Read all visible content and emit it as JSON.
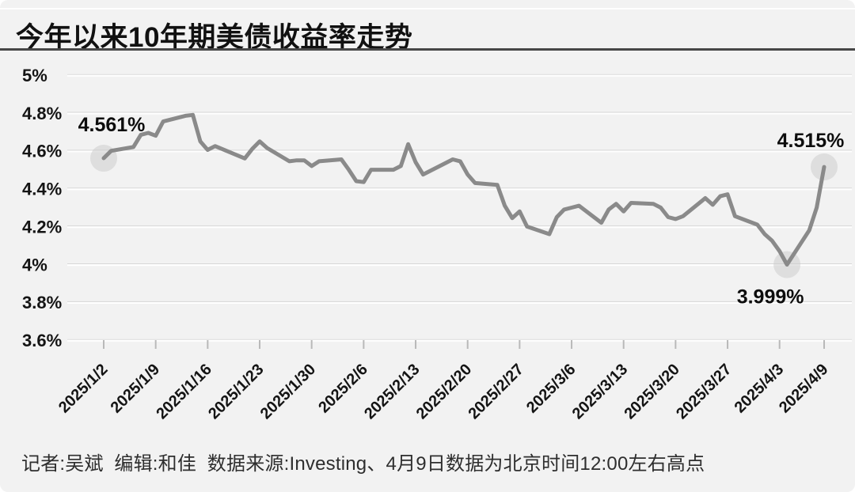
{
  "page": {
    "title": "今年以来10年期美债收益率走势",
    "footer": "记者:吴斌  编辑:和佳  数据来源:Investing、4月9日数据为北京时间12:00左右高点"
  },
  "colors": {
    "background": "#f2f2f2",
    "line": "#8a8a8a",
    "grid_dark": "#d7d7d7",
    "grid_light": "#ffffff",
    "marker": "#c9c9c9",
    "tick": "#b9b9b9",
    "axis_text": "#141414",
    "annotation_text": "#0d0d0d",
    "divider": "#474747"
  },
  "chart_data": {
    "type": "line",
    "title": "今年以来10年期美债收益率走势",
    "xlabel": "",
    "ylabel": "",
    "ylim": [
      3.6,
      5.0
    ],
    "grid": true,
    "legend": false,
    "y_ticks": [
      {
        "label": "5%",
        "value": 5.0
      },
      {
        "label": "4.8%",
        "value": 4.8
      },
      {
        "label": "4.6%",
        "value": 4.6
      },
      {
        "label": "4.4%",
        "value": 4.4
      },
      {
        "label": "4.2%",
        "value": 4.2
      },
      {
        "label": "4%",
        "value": 4.0
      },
      {
        "label": "3.8%",
        "value": 3.8
      },
      {
        "label": "3.6%",
        "value": 3.6
      }
    ],
    "x_ticks": [
      "2025/1/2",
      "2025/1/9",
      "2025/1/16",
      "2025/1/23",
      "2025/1/30",
      "2025/2/6",
      "2025/2/13",
      "2025/2/20",
      "2025/2/27",
      "2025/3/6",
      "2025/3/13",
      "2025/3/20",
      "2025/3/27",
      "2025/4/3",
      "2025/4/9"
    ],
    "series": [
      {
        "name": "10年期美债收益率",
        "points": [
          [
            "2025/1/2",
            4.561
          ],
          [
            "2025/1/3",
            4.6
          ],
          [
            "2025/1/6",
            4.62
          ],
          [
            "2025/1/7",
            4.685
          ],
          [
            "2025/1/8",
            4.695
          ],
          [
            "2025/1/9",
            4.68
          ],
          [
            "2025/1/10",
            4.755
          ],
          [
            "2025/1/13",
            4.785
          ],
          [
            "2025/1/14",
            4.79
          ],
          [
            "2025/1/15",
            4.65
          ],
          [
            "2025/1/16",
            4.605
          ],
          [
            "2025/1/17",
            4.625
          ],
          [
            "2025/1/21",
            4.56
          ],
          [
            "2025/1/22",
            4.61
          ],
          [
            "2025/1/23",
            4.65
          ],
          [
            "2025/1/24",
            4.615
          ],
          [
            "2025/1/27",
            4.545
          ],
          [
            "2025/1/28",
            4.55
          ],
          [
            "2025/1/29",
            4.55
          ],
          [
            "2025/1/30",
            4.52
          ],
          [
            "2025/1/31",
            4.545
          ],
          [
            "2025/2/3",
            4.555
          ],
          [
            "2025/2/4",
            4.5
          ],
          [
            "2025/2/5",
            4.44
          ],
          [
            "2025/2/6",
            4.435
          ],
          [
            "2025/2/7",
            4.5
          ],
          [
            "2025/2/10",
            4.5
          ],
          [
            "2025/2/11",
            4.52
          ],
          [
            "2025/2/12",
            4.635
          ],
          [
            "2025/2/13",
            4.54
          ],
          [
            "2025/2/14",
            4.475
          ],
          [
            "2025/2/18",
            4.555
          ],
          [
            "2025/2/19",
            4.545
          ],
          [
            "2025/2/20",
            4.475
          ],
          [
            "2025/2/21",
            4.43
          ],
          [
            "2025/2/24",
            4.42
          ],
          [
            "2025/2/25",
            4.31
          ],
          [
            "2025/2/26",
            4.245
          ],
          [
            "2025/2/27",
            4.28
          ],
          [
            "2025/2/28",
            4.2
          ],
          [
            "2025/3/3",
            4.16
          ],
          [
            "2025/3/4",
            4.25
          ],
          [
            "2025/3/5",
            4.29
          ],
          [
            "2025/3/6",
            4.3
          ],
          [
            "2025/3/7",
            4.31
          ],
          [
            "2025/3/10",
            4.22
          ],
          [
            "2025/3/11",
            4.29
          ],
          [
            "2025/3/12",
            4.32
          ],
          [
            "2025/3/13",
            4.28
          ],
          [
            "2025/3/14",
            4.325
          ],
          [
            "2025/3/17",
            4.32
          ],
          [
            "2025/3/18",
            4.3
          ],
          [
            "2025/3/19",
            4.25
          ],
          [
            "2025/3/20",
            4.24
          ],
          [
            "2025/3/21",
            4.255
          ],
          [
            "2025/3/24",
            4.35
          ],
          [
            "2025/3/25",
            4.315
          ],
          [
            "2025/3/26",
            4.36
          ],
          [
            "2025/3/27",
            4.37
          ],
          [
            "2025/3/28",
            4.255
          ],
          [
            "2025/3/31",
            4.21
          ],
          [
            "2025/4/1",
            4.16
          ],
          [
            "2025/4/2",
            4.125
          ],
          [
            "2025/4/3",
            4.07
          ],
          [
            "2025/4/4",
            3.999
          ],
          [
            "2025/4/7",
            4.18
          ],
          [
            "2025/4/8",
            4.3
          ],
          [
            "2025/4/9",
            4.515
          ]
        ]
      }
    ],
    "annotations": [
      {
        "date": "2025/1/2",
        "value": 4.561,
        "text": "4.561%"
      },
      {
        "date": "2025/4/4",
        "value": 3.999,
        "text": "3.999%"
      },
      {
        "date": "2025/4/9",
        "value": 4.515,
        "text": "4.515%"
      }
    ]
  }
}
